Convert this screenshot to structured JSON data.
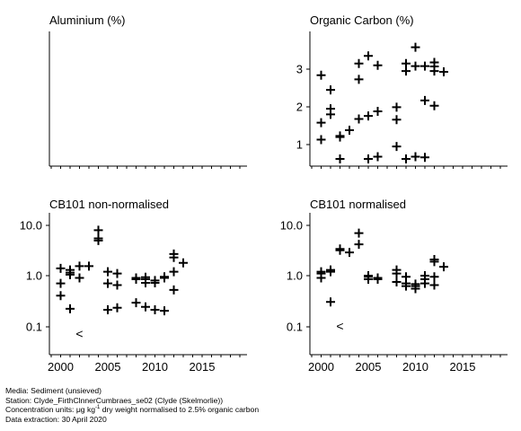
{
  "chart_data": [
    {
      "type": "scatter",
      "title": "Aluminium (%)",
      "yscale": "linear",
      "yticks": [],
      "xticks": [],
      "points": []
    },
    {
      "type": "scatter",
      "title": "Organic Carbon (%)",
      "yscale": "linear",
      "ylim": [
        0.6,
        3.8
      ],
      "yticks": [
        "1",
        "2",
        "3"
      ],
      "xticks": [],
      "xlim": [
        1999,
        2019
      ],
      "points": [
        [
          2000,
          1.13
        ],
        [
          2000,
          1.58
        ],
        [
          2000,
          2.84
        ],
        [
          2001,
          1.8
        ],
        [
          2001,
          1.95
        ],
        [
          2001,
          2.45
        ],
        [
          2002,
          0.62
        ],
        [
          2002,
          1.2
        ],
        [
          2002,
          1.23
        ],
        [
          2003,
          1.38
        ],
        [
          2004,
          1.68
        ],
        [
          2004,
          2.73
        ],
        [
          2004,
          3.15
        ],
        [
          2005,
          0.62
        ],
        [
          2005,
          1.76
        ],
        [
          2005,
          3.35
        ],
        [
          2006,
          0.68
        ],
        [
          2006,
          1.88
        ],
        [
          2006,
          3.1
        ],
        [
          2008,
          0.95
        ],
        [
          2008,
          1.66
        ],
        [
          2008,
          1.99
        ],
        [
          2009,
          0.62
        ],
        [
          2009,
          2.95
        ],
        [
          2009,
          3.15
        ],
        [
          2010,
          0.68
        ],
        [
          2010,
          3.08
        ],
        [
          2010,
          3.58
        ],
        [
          2011,
          0.66
        ],
        [
          2011,
          2.17
        ],
        [
          2011,
          3.08
        ],
        [
          2012,
          2.03
        ],
        [
          2012,
          2.95
        ],
        [
          2012,
          3.07
        ],
        [
          2012,
          3.18
        ],
        [
          2013,
          2.93
        ]
      ]
    },
    {
      "type": "scatter",
      "title": "CB101 non-normalised",
      "yscale": "log",
      "ylim": [
        0.05,
        15
      ],
      "yticks": [
        "10.0",
        "1.0",
        "0.1"
      ],
      "xticks": [
        "2000",
        "2005",
        "2010",
        "2015"
      ],
      "xlim": [
        1999,
        2019
      ],
      "points": [
        [
          2000,
          0.4
        ],
        [
          2000,
          0.7
        ],
        [
          2000,
          1.4
        ],
        [
          2001,
          0.22
        ],
        [
          2001,
          1.05
        ],
        [
          2001,
          1.15
        ],
        [
          2001,
          1.3
        ],
        [
          2002,
          0.9
        ],
        [
          2002,
          1.55
        ],
        [
          2003,
          1.55
        ],
        [
          2004,
          5.0
        ],
        [
          2004,
          5.5
        ],
        [
          2004,
          8.0
        ],
        [
          2005,
          0.21
        ],
        [
          2005,
          0.7
        ],
        [
          2005,
          1.2
        ],
        [
          2006,
          0.23
        ],
        [
          2006,
          0.65
        ],
        [
          2006,
          1.1
        ],
        [
          2008,
          0.29
        ],
        [
          2008,
          0.85
        ],
        [
          2008,
          0.9
        ],
        [
          2009,
          0.24
        ],
        [
          2009,
          0.72
        ],
        [
          2009,
          0.85
        ],
        [
          2009,
          0.93
        ],
        [
          2010,
          0.21
        ],
        [
          2010,
          0.72
        ],
        [
          2010,
          0.8
        ],
        [
          2011,
          0.2
        ],
        [
          2011,
          0.9
        ],
        [
          2011,
          0.95
        ],
        [
          2012,
          0.52
        ],
        [
          2012,
          1.2
        ],
        [
          2012,
          2.3
        ],
        [
          2012,
          2.7
        ],
        [
          2013,
          1.8
        ]
      ],
      "censored": [
        {
          "x": 2002,
          "y": 0.07,
          "label": "<"
        }
      ]
    },
    {
      "type": "scatter",
      "title": "CB101 normalised",
      "yscale": "log",
      "ylim": [
        0.05,
        15
      ],
      "yticks": [
        "10.0",
        "1.0",
        "0.1"
      ],
      "xticks": [
        "2000",
        "2005",
        "2010",
        "2015"
      ],
      "xlim": [
        1999,
        2019
      ],
      "points": [
        [
          2000,
          0.9
        ],
        [
          2000,
          1.1
        ],
        [
          2000,
          1.2
        ],
        [
          2001,
          0.3
        ],
        [
          2001,
          1.2
        ],
        [
          2001,
          1.3
        ],
        [
          2002,
          3.2
        ],
        [
          2002,
          3.4
        ],
        [
          2003,
          2.9
        ],
        [
          2004,
          4.2
        ],
        [
          2004,
          7.0
        ],
        [
          2005,
          0.85
        ],
        [
          2005,
          0.95
        ],
        [
          2005,
          1.0
        ],
        [
          2006,
          0.85
        ],
        [
          2006,
          0.9
        ],
        [
          2008,
          0.75
        ],
        [
          2008,
          1.1
        ],
        [
          2008,
          1.3
        ],
        [
          2009,
          0.62
        ],
        [
          2009,
          0.7
        ],
        [
          2009,
          0.95
        ],
        [
          2010,
          0.55
        ],
        [
          2010,
          0.62
        ],
        [
          2010,
          0.68
        ],
        [
          2011,
          0.7
        ],
        [
          2011,
          0.85
        ],
        [
          2011,
          1.0
        ],
        [
          2012,
          0.65
        ],
        [
          2012,
          0.95
        ],
        [
          2012,
          1.9
        ],
        [
          2012,
          2.1
        ],
        [
          2013,
          1.5
        ]
      ],
      "censored": [
        {
          "x": 2002,
          "y": 0.1,
          "label": "<"
        }
      ]
    }
  ],
  "footer": {
    "media": "Media: Sediment (unsieved)",
    "station": "Station: Clyde_FirthClnnerCumbraes_se02 (Clyde (Skelmorlie))",
    "units_prefix": "Concentration units:  μg kg",
    "units_sup": "-1",
    "units_suffix": " dry weight normalised to 2.5% organic carbon",
    "extraction": "Data extraction: 30 April 2020"
  }
}
